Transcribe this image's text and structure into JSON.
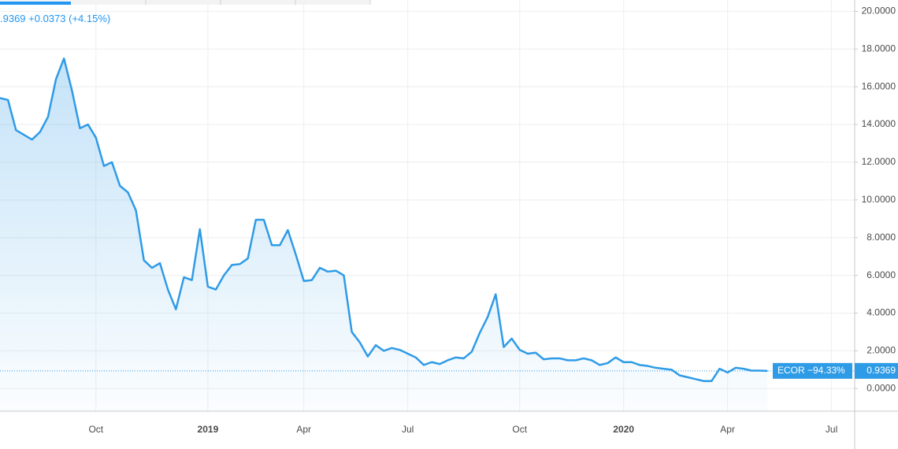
{
  "header": {
    "quote": ".9369 +0.0373 (+4.15%)"
  },
  "chart_data": {
    "type": "area",
    "categories": [
      null,
      null,
      null,
      null,
      null,
      null,
      null,
      null,
      null,
      null,
      null,
      null,
      "Oct",
      null,
      null,
      null,
      null,
      null,
      null,
      null,
      null,
      null,
      null,
      null,
      null,
      null,
      "2019",
      null,
      null,
      null,
      null,
      null,
      null,
      null,
      null,
      null,
      null,
      null,
      "Apr",
      null,
      null,
      null,
      null,
      null,
      null,
      null,
      null,
      null,
      null,
      null,
      null,
      "Jul",
      null,
      null,
      null,
      null,
      null,
      null,
      null,
      null,
      null,
      null,
      null,
      null,
      null,
      "Oct",
      null,
      null,
      null,
      null,
      null,
      null,
      null,
      null,
      null,
      null,
      null,
      null,
      "2020",
      null,
      null,
      null,
      null,
      null,
      null,
      null,
      null,
      null,
      null,
      null,
      null,
      "Apr",
      null,
      null,
      null,
      null,
      null,
      null,
      null,
      null,
      null,
      null,
      null,
      null,
      "Jul",
      null,
      null
    ],
    "series": [
      {
        "name": "ECOR −94.33%",
        "color": "#2e9be6",
        "values": [
          15.4,
          15.3,
          13.7,
          13.45,
          13.2,
          13.6,
          14.4,
          16.4,
          17.5,
          15.8,
          13.8,
          14.0,
          13.3,
          11.8,
          12.0,
          10.75,
          10.4,
          9.45,
          6.8,
          6.4,
          6.65,
          5.25,
          4.2,
          5.9,
          5.75,
          8.45,
          5.4,
          5.25,
          6.0,
          6.55,
          6.6,
          6.9,
          8.95,
          8.95,
          7.6,
          7.6,
          8.4,
          7.1,
          5.7,
          5.75,
          6.4,
          6.2,
          6.25,
          6.0,
          3.0,
          2.45,
          1.7,
          2.3,
          2.0,
          2.15,
          2.05,
          1.85,
          1.65,
          1.25,
          1.4,
          1.3,
          1.5,
          1.65,
          1.6,
          1.95,
          2.95,
          3.8,
          5.0,
          2.2,
          2.65,
          2.05,
          1.85,
          1.9,
          1.55,
          1.6,
          1.6,
          1.5,
          1.5,
          1.6,
          1.5,
          1.25,
          1.35,
          1.65,
          1.4,
          1.4,
          1.25,
          1.2,
          1.1,
          1.05,
          1.0,
          0.7,
          0.6,
          0.5,
          0.4,
          0.4,
          1.05,
          0.85,
          1.1,
          1.05,
          0.95,
          0.95,
          0.9369,
          null,
          null,
          null,
          null,
          null,
          null,
          null,
          null,
          null,
          null
        ]
      }
    ],
    "ylim": [
      -1.2,
      20.6
    ],
    "yticks": [
      {
        "value": 0,
        "label": "0.0000"
      },
      {
        "value": 2,
        "label": "2.0000"
      },
      {
        "value": 4,
        "label": "4.0000"
      },
      {
        "value": 6,
        "label": "6.0000"
      },
      {
        "value": 8,
        "label": "8.0000"
      },
      {
        "value": 10,
        "label": "10.0000"
      },
      {
        "value": 12,
        "label": "12.0000"
      },
      {
        "value": 14,
        "label": "14.0000"
      },
      {
        "value": 16,
        "label": "16.0000"
      },
      {
        "value": 18,
        "label": "18.0000"
      },
      {
        "value": 20,
        "label": "20.0000"
      }
    ],
    "grid": true
  }
}
